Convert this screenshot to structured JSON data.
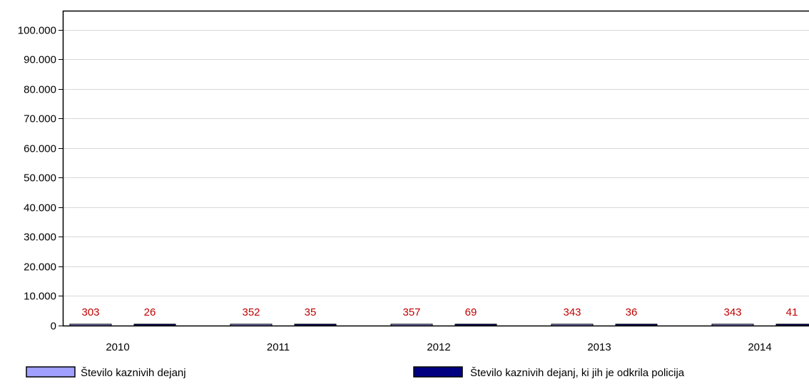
{
  "chart_data": {
    "type": "bar",
    "categories": [
      "2010",
      "2011",
      "2012",
      "2013",
      "2014"
    ],
    "series": [
      {
        "name": "Število kaznivih dejanj",
        "values": [
          303,
          352,
          357,
          343,
          343
        ],
        "value_labels": [
          "303",
          "352",
          "357",
          "343",
          "343"
        ],
        "color": "#a0a0ff"
      },
      {
        "name": "Število kaznivih dejanj, ki jih je odkrila policija",
        "values": [
          26,
          35,
          69,
          36,
          41
        ],
        "value_labels": [
          "26",
          "35",
          "69",
          "36",
          "41"
        ],
        "color": "#000080"
      }
    ],
    "y_ticks": [
      0,
      10000,
      20000,
      30000,
      40000,
      50000,
      60000,
      70000,
      80000,
      90000,
      100000
    ],
    "y_tick_labels": [
      "0",
      "10.000",
      "20.000",
      "30.000",
      "40.000",
      "50.000",
      "60.000",
      "70.000",
      "80.000",
      "90.000",
      "100.000"
    ],
    "ylim": [
      0,
      106500
    ],
    "grid": true,
    "legend_position": "bottom",
    "title": "",
    "xlabel": "",
    "ylabel": "",
    "colors": {
      "axis": "#000000",
      "grid": "#d8d8d8",
      "data_label": "#c00000",
      "bar_outline": "#000000"
    }
  }
}
